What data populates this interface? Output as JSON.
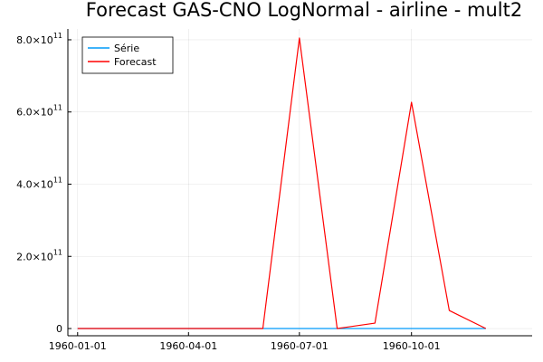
{
  "chart_data": {
    "type": "line",
    "title": "Forecast GAS-CNO LogNormal - airline - mult2",
    "xlabel": "",
    "ylabel": "",
    "grid": true,
    "legend_position": "top-left",
    "x": [
      "1960-01-01",
      "1960-02-01",
      "1960-03-01",
      "1960-04-01",
      "1960-05-01",
      "1960-06-01",
      "1960-07-01",
      "1960-08-01",
      "1960-09-01",
      "1960-10-01",
      "1960-11-01",
      "1960-12-01"
    ],
    "xlim": [
      "1959-12-24",
      "1961-01-08"
    ],
    "ylim": [
      -20000000000.0,
      830000000000.0
    ],
    "x_ticks": [
      {
        "value": "1960-01-01",
        "label": "1960-01-01"
      },
      {
        "value": "1960-04-01",
        "label": "1960-04-01"
      },
      {
        "value": "1960-07-01",
        "label": "1960-07-01"
      },
      {
        "value": "1960-10-01",
        "label": "1960-10-01"
      }
    ],
    "y_ticks": [
      {
        "value": 0,
        "mantissa": "0",
        "exponent": ""
      },
      {
        "value": 200000000000.0,
        "mantissa": "2.0×10",
        "exponent": "11"
      },
      {
        "value": 400000000000.0,
        "mantissa": "4.0×10",
        "exponent": "11"
      },
      {
        "value": 600000000000.0,
        "mantissa": "6.0×10",
        "exponent": "11"
      },
      {
        "value": 800000000000.0,
        "mantissa": "8.0×10",
        "exponent": "11"
      }
    ],
    "series": [
      {
        "name": "Série",
        "color": "#009af9",
        "values": [
          0,
          0,
          0,
          0,
          0,
          0,
          0,
          0,
          0,
          0,
          0,
          0
        ]
      },
      {
        "name": "Forecast",
        "color": "#ff0000",
        "values": [
          0,
          0,
          0,
          0,
          0,
          0,
          805000000000.0,
          0,
          15000000000.0,
          627000000000.0,
          50000000000.0,
          0
        ]
      }
    ]
  }
}
